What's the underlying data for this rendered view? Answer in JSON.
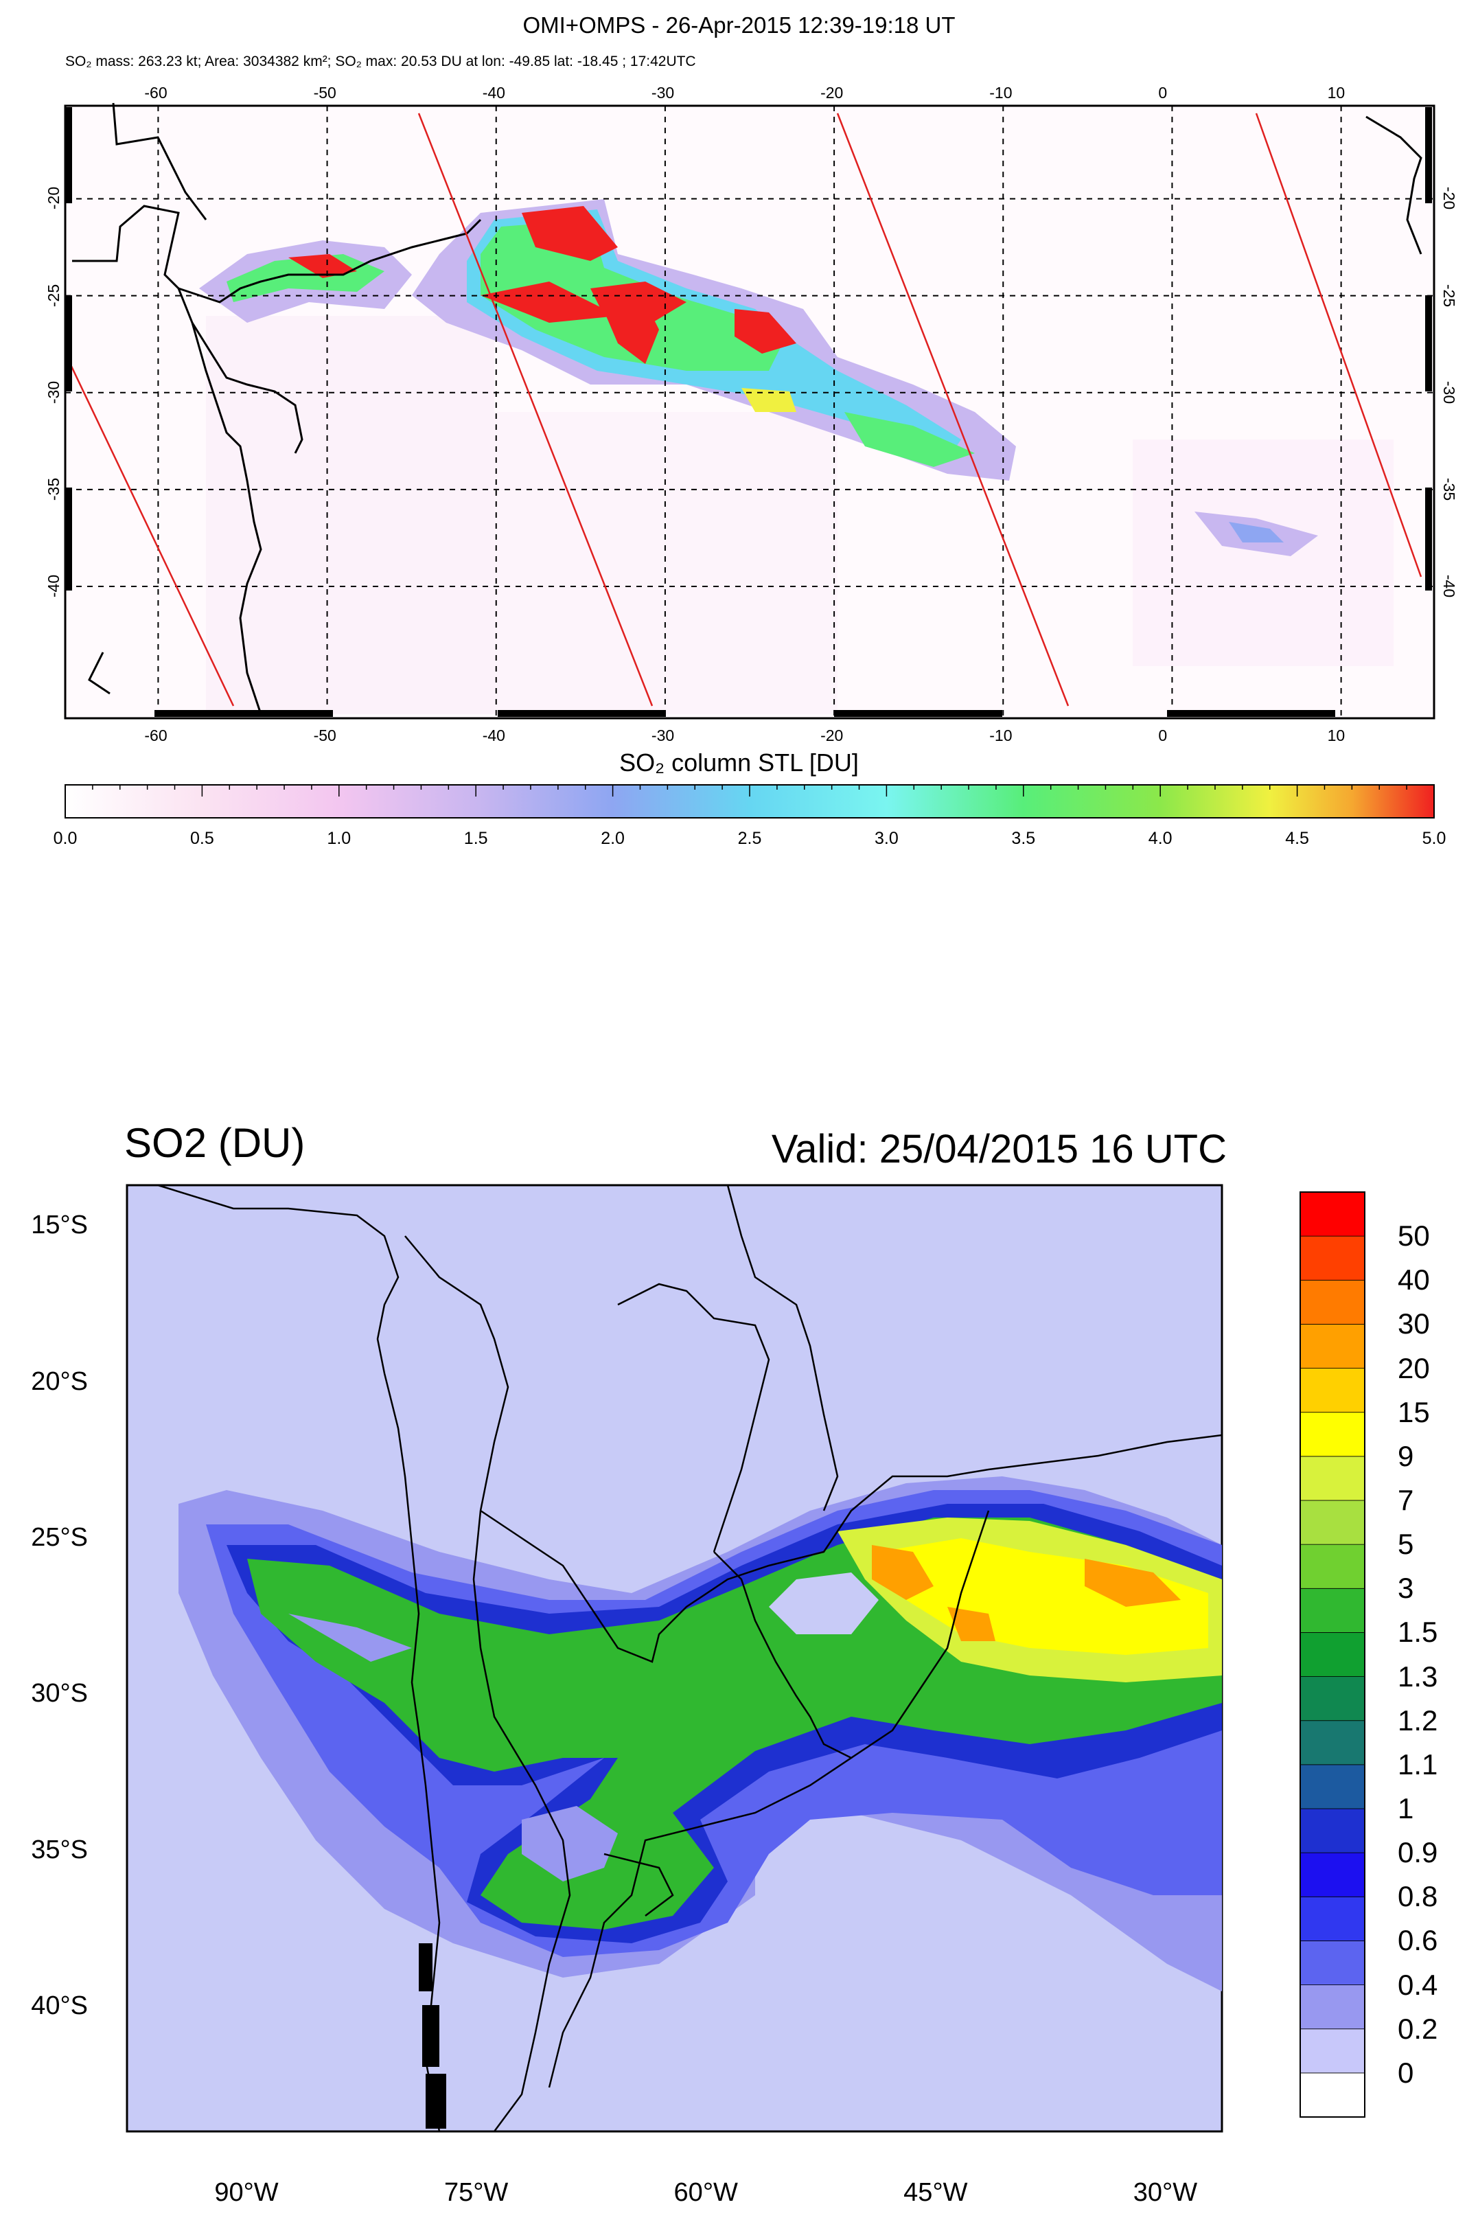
{
  "panel1": {
    "title": "OMI+OMPS - 26-Apr-2015 12:39-19:18 UT",
    "subtitle": "SO₂ mass: 263.23 kt; Area: 3034382 km²; SO₂ max: 20.53 DU at lon: -49.85 lat: -18.45 ; 17:42UTC",
    "lon_ticks": [
      "-60",
      "-50",
      "-40",
      "-30",
      "-20",
      "-10",
      "0",
      "10"
    ],
    "lon_values": [
      -60,
      -50,
      -40,
      -30,
      -20,
      -10,
      0,
      10
    ],
    "lat_ticks": [
      "-20",
      "-25",
      "-30",
      "-35",
      "-40"
    ],
    "lat_values": [
      -20,
      -25,
      -30,
      -35,
      -40
    ],
    "colorbar_title": "SO₂ column STL [DU]",
    "colorbar_labels": [
      "0.0",
      "0.5",
      "1.0",
      "1.5",
      "2.0",
      "2.5",
      "3.0",
      "3.5",
      "4.0",
      "4.5",
      "5.0"
    ],
    "colorbar_min": 0.0,
    "colorbar_max": 5.0,
    "colorbar_colors": [
      "#ffffff",
      "#fbe3f2",
      "#f3c6f0",
      "#c9b6f0",
      "#8ea6f2",
      "#66d6f2",
      "#7af5f0",
      "#58ee7a",
      "#8ce84a",
      "#f0f040",
      "#f5a830",
      "#f02020"
    ]
  },
  "panel2": {
    "title": "SO2 (DU)",
    "valid": "Valid: 25/04/2015  16 UTC",
    "lat_labels": [
      "15°S",
      "20°S",
      "25°S",
      "30°S",
      "35°S",
      "40°S"
    ],
    "lat_values": [
      -15,
      -20,
      -25,
      -30,
      -35,
      -40
    ],
    "lon_labels": [
      "90°W",
      "75°W",
      "60°W",
      "45°W",
      "30°W"
    ],
    "lon_values": [
      -90,
      -75,
      -60,
      -45,
      -30
    ],
    "legend_labels": [
      "50",
      "40",
      "30",
      "20",
      "15",
      "9",
      "7",
      "5",
      "3",
      "1.5",
      "1.3",
      "1.2",
      "1.1",
      "1",
      "0.9",
      "0.8",
      "0.6",
      "0.4",
      "0.2",
      "0"
    ],
    "legend_colors": [
      "#ff0000",
      "#ff4000",
      "#ff7b00",
      "#ffa000",
      "#ffd000",
      "#ffff00",
      "#d8f23c",
      "#a8e040",
      "#70d030",
      "#30b830",
      "#10a030",
      "#108850",
      "#187870",
      "#1c5aa0",
      "#1e30d0",
      "#1c10f0",
      "#3038f0",
      "#5c64f0",
      "#9898f0",
      "#c8c8fa",
      "#ffffff"
    ],
    "background_color": "#c8cbf7"
  }
}
